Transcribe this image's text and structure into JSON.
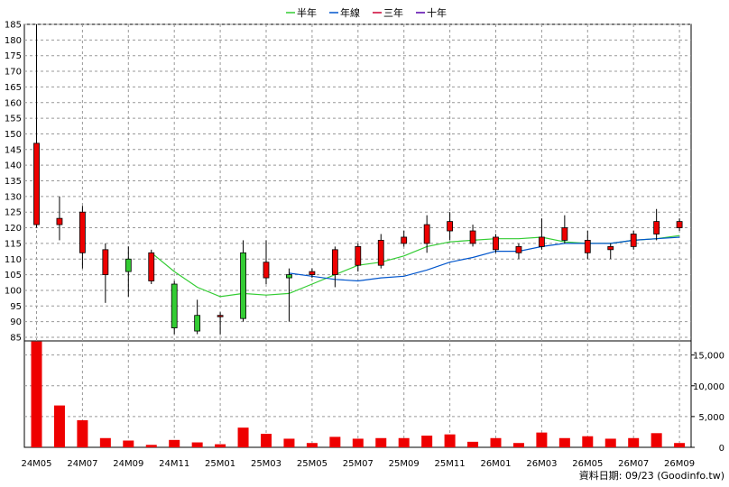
{
  "chart_data": {
    "type": "candlestick",
    "legend": [
      {
        "label": "半年",
        "color": "#33cc33"
      },
      {
        "label": "年線",
        "color": "#0055cc"
      },
      {
        "label": "三年",
        "color": "#cc0033"
      },
      {
        "label": "十年",
        "color": "#5500aa"
      }
    ],
    "x_labels": [
      "24M05",
      "24M07",
      "24M09",
      "24M11",
      "25M01",
      "25M03",
      "25M05",
      "25M07",
      "25M09",
      "25M11",
      "26M01",
      "26M03",
      "26M05",
      "26M07",
      "26M09"
    ],
    "price_axis": {
      "min": 85,
      "max": 185,
      "step": 5
    },
    "volume_axis": {
      "max": 17000,
      "ticks": [
        0,
        5000,
        10000,
        15000
      ],
      "tick_labels": [
        "0",
        "5,000",
        "10,000",
        "15,000"
      ]
    },
    "months": [
      "24M05",
      "24M06",
      "24M07",
      "24M08",
      "24M09",
      "24M10",
      "24M11",
      "24M12",
      "25M01",
      "25M02",
      "25M03",
      "25M04",
      "25M05",
      "25M06",
      "25M07",
      "25M08",
      "25M09",
      "25M10",
      "25M11",
      "25M12",
      "26M01",
      "26M02",
      "26M03",
      "26M04",
      "26M05",
      "26M06",
      "26M07",
      "26M08",
      "26M09"
    ],
    "candles": [
      {
        "o": 121,
        "h": 185,
        "l": 120,
        "c": 147
      },
      {
        "o": 121,
        "h": 130,
        "l": 116,
        "c": 123
      },
      {
        "o": 112,
        "h": 127,
        "l": 107,
        "c": 125
      },
      {
        "o": 105,
        "h": 115,
        "l": 96,
        "c": 113
      },
      {
        "o": 110,
        "h": 114,
        "l": 98,
        "c": 106
      },
      {
        "o": 103,
        "h": 113,
        "l": 102,
        "c": 112
      },
      {
        "o": 102,
        "h": 103,
        "l": 86,
        "c": 88
      },
      {
        "o": 92,
        "h": 97,
        "l": 86,
        "c": 87
      },
      {
        "o": 92,
        "h": 93,
        "l": 86,
        "c": 92
      },
      {
        "o": 112,
        "h": 116,
        "l": 90,
        "c": 91
      },
      {
        "o": 104,
        "h": 116,
        "l": 102,
        "c": 109
      },
      {
        "o": 105,
        "h": 107,
        "l": 90,
        "c": 104
      },
      {
        "o": 105,
        "h": 107,
        "l": 104,
        "c": 106
      },
      {
        "o": 105,
        "h": 114,
        "l": 101,
        "c": 113
      },
      {
        "o": 108,
        "h": 115,
        "l": 106,
        "c": 114
      },
      {
        "o": 108,
        "h": 118,
        "l": 107,
        "c": 116
      },
      {
        "o": 115,
        "h": 119,
        "l": 114,
        "c": 117
      },
      {
        "o": 115,
        "h": 124,
        "l": 112,
        "c": 121
      },
      {
        "o": 119,
        "h": 125,
        "l": 116,
        "c": 122
      },
      {
        "o": 115,
        "h": 121,
        "l": 114,
        "c": 119
      },
      {
        "o": 113,
        "h": 118,
        "l": 112,
        "c": 117
      },
      {
        "o": 112,
        "h": 115,
        "l": 110,
        "c": 114
      },
      {
        "o": 114,
        "h": 123,
        "l": 113,
        "c": 117
      },
      {
        "o": 116,
        "h": 124,
        "l": 115,
        "c": 120
      },
      {
        "o": 112,
        "h": 119,
        "l": 110,
        "c": 116
      },
      {
        "o": 113,
        "h": 115,
        "l": 110,
        "c": 114
      },
      {
        "o": 114,
        "h": 119,
        "l": 113,
        "c": 118
      },
      {
        "o": 118,
        "h": 126,
        "l": 116,
        "c": 122
      },
      {
        "o": 120,
        "h": 123,
        "l": 119,
        "c": 122
      }
    ],
    "volumes": [
      17200,
      6800,
      4400,
      1500,
      1100,
      400,
      1200,
      800,
      500,
      3200,
      2200,
      1400,
      700,
      1700,
      1400,
      1500,
      1500,
      1900,
      2100,
      900,
      1500,
      700,
      2400,
      1500,
      1800,
      1400,
      1500,
      2300,
      700
    ],
    "ma_half_year": [
      null,
      null,
      null,
      null,
      null,
      112,
      106,
      101,
      98,
      99,
      98.5,
      99,
      102,
      105,
      108,
      109,
      111,
      114,
      115.5,
      116,
      116.5,
      116.5,
      117,
      115.5,
      115,
      115,
      116,
      116.5,
      117.5
    ],
    "ma_year": [
      null,
      null,
      null,
      null,
      null,
      null,
      null,
      null,
      null,
      null,
      null,
      105.5,
      104.5,
      103.5,
      103,
      104,
      104.5,
      106.5,
      109,
      110.5,
      112.5,
      112.5,
      114,
      115,
      115,
      115,
      116,
      116.5,
      117
    ],
    "ma_three_year": [],
    "ma_ten_year": [],
    "colors": {
      "up": "#ee0000",
      "down": "#33cc33",
      "volume": "#ee0000",
      "grid": "#999999"
    }
  },
  "source": "資料日期: 09/23 (Goodinfo.tw)"
}
